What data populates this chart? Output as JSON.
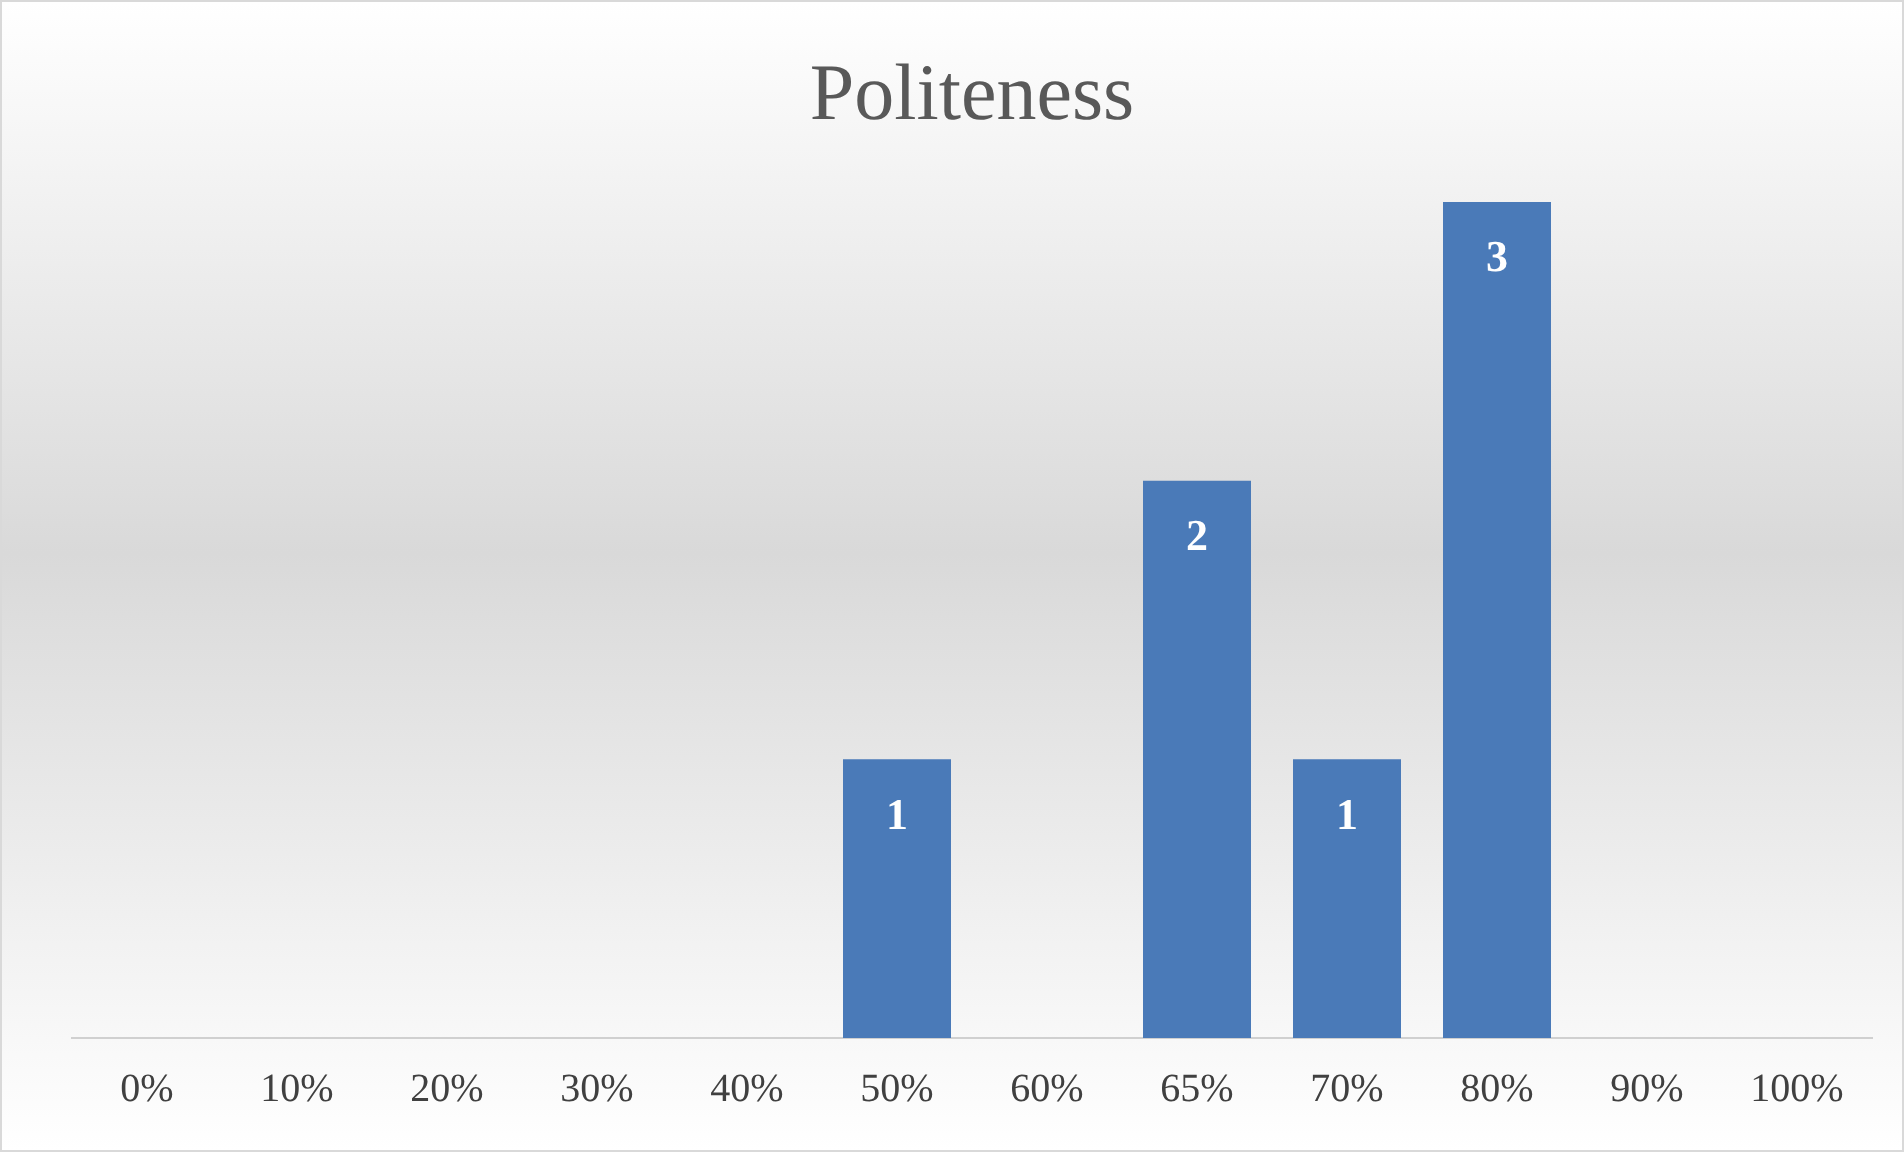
{
  "chart_data": {
    "type": "bar",
    "title": "Politeness",
    "categories": [
      "0%",
      "10%",
      "20%",
      "30%",
      "40%",
      "50%",
      "60%",
      "65%",
      "70%",
      "80%",
      "90%",
      "100%"
    ],
    "values": [
      0,
      0,
      0,
      0,
      0,
      1,
      0,
      2,
      1,
      3,
      0,
      0
    ],
    "value_labels": [
      null,
      null,
      null,
      null,
      null,
      "1",
      null,
      "2",
      "1",
      "3",
      null,
      null
    ],
    "color": "#4a7ab8",
    "tick_labels": "x",
    "grid": false,
    "legend": false
  }
}
